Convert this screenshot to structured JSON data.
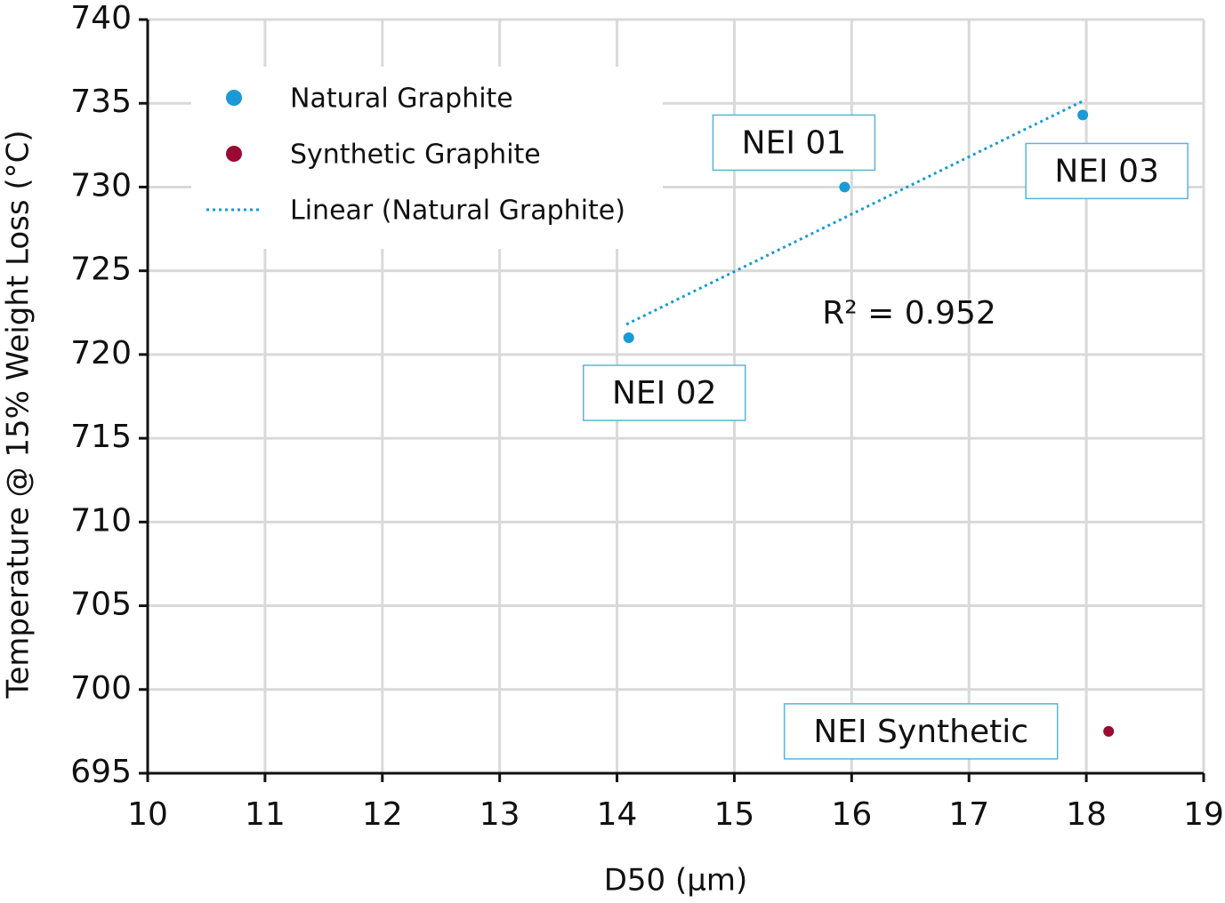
{
  "chart_data": {
    "type": "scatter",
    "x_label": "D50 (µm)",
    "y_label": "Temperature @ 15% Weight Loss (°C)",
    "xlim": [
      10,
      19
    ],
    "xticks": [
      10,
      11,
      12,
      13,
      14,
      15,
      16,
      17,
      18,
      19
    ],
    "ylim": [
      695,
      740
    ],
    "yticks": [
      695,
      700,
      705,
      710,
      715,
      720,
      725,
      730,
      735,
      740
    ],
    "grid": true,
    "legend": "upper left",
    "series": [
      {
        "name": "Natural Graphite",
        "color": "#1a9ad6",
        "kind": "points",
        "x": [
          14.1,
          15.94,
          17.97
        ],
        "values": [
          721.0,
          730.0,
          734.3
        ],
        "point_labels": [
          "NEI 02",
          "NEI 01",
          "NEI 03"
        ]
      },
      {
        "name": "Synthetic Graphite",
        "color": "#9b0a34",
        "kind": "points",
        "x": [
          18.19
        ],
        "values": [
          697.5
        ],
        "point_labels": [
          "NEI Synthetic"
        ]
      },
      {
        "name": "Linear (Natural Graphite)",
        "color": "#1a9ad6",
        "kind": "trendline",
        "x": [
          14.08,
          17.99
        ],
        "values": [
          721.8,
          735.2
        ]
      }
    ],
    "annotations": [
      "R² = 0.952"
    ]
  }
}
